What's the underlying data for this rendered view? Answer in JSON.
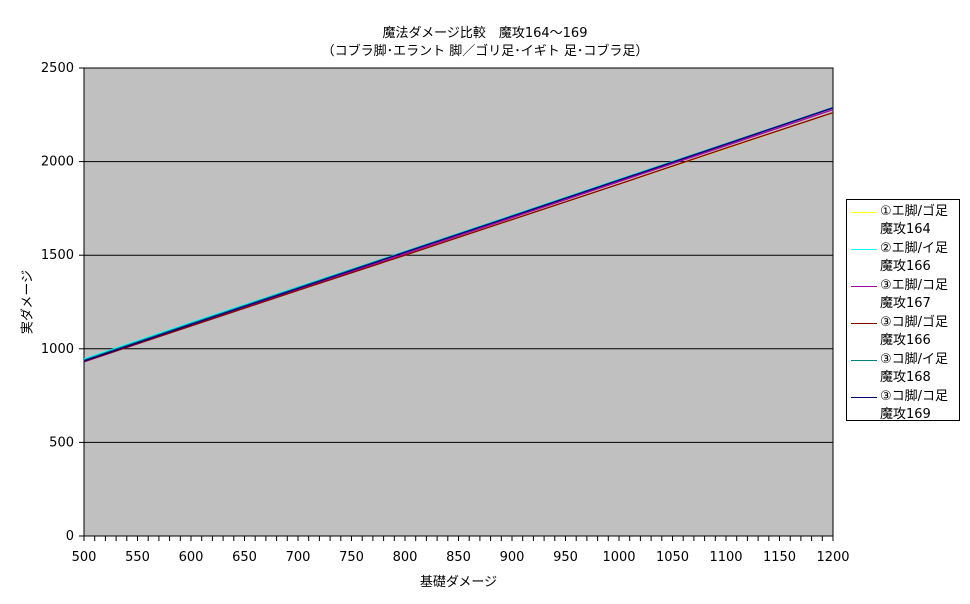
{
  "chart_data": {
    "type": "line",
    "title": "魔法ダメージ比較　魔攻164～169",
    "subtitle": "（コブラ脚･エラント 脚／ゴリ足･イギト 足･コブラ足）",
    "xlabel": "基礎ダメージ",
    "ylabel": "実ダメージ",
    "xlim": [
      500,
      1200
    ],
    "ylim": [
      0,
      2500
    ],
    "x_ticks": [
      500,
      550,
      600,
      650,
      700,
      750,
      800,
      850,
      900,
      950,
      1000,
      1050,
      1100,
      1150,
      1200
    ],
    "y_ticks": [
      0,
      500,
      1000,
      1500,
      2000,
      2500
    ],
    "grid": "horizontal",
    "plot_background": "#c0c0c0",
    "legend_position": "right",
    "x": [
      500,
      600,
      700,
      800,
      900,
      1000,
      1100,
      1200
    ],
    "series": [
      {
        "name": "①エ脚/ゴ足\n魔攻164",
        "color": "#ffff00",
        "values": [
          935,
          1124,
          1313,
          1500,
          1690,
          1880,
          2070,
          2262
        ]
      },
      {
        "name": "②エ脚/イ足\n魔攻166",
        "color": "#00ffff",
        "values": [
          945,
          1140,
          1330,
          1520,
          1712,
          1905,
          2095,
          2287
        ]
      },
      {
        "name": "③エ脚/コ足\n魔攻167",
        "color": "#aa00aa",
        "values": [
          930,
          1123,
          1315,
          1507,
          1700,
          1893,
          2085,
          2278
        ]
      },
      {
        "name": "③コ脚/ゴ足\n魔攻166",
        "color": "#880000",
        "values": [
          932,
          1122,
          1312,
          1500,
          1690,
          1880,
          2072,
          2262
        ]
      },
      {
        "name": "③コ脚/イ足\n魔攻168",
        "color": "#008080",
        "values": [
          940,
          1135,
          1327,
          1518,
          1710,
          1903,
          2095,
          2289
        ]
      },
      {
        "name": "③コ脚/コ足\n魔攻169",
        "color": "#000080",
        "values": [
          935,
          1130,
          1322,
          1515,
          1707,
          1900,
          2093,
          2287
        ]
      }
    ]
  }
}
